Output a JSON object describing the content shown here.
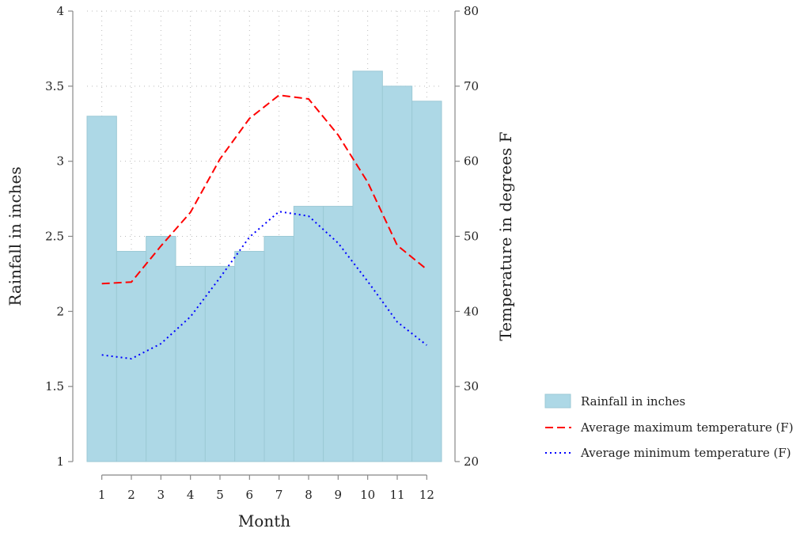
{
  "chart_data": {
    "type": "bar",
    "xlabel": "Month",
    "ylabel": "Rainfall in inches",
    "y2label": "Temperature in degrees F",
    "categories": [
      1,
      2,
      3,
      4,
      5,
      6,
      7,
      8,
      9,
      10,
      11,
      12
    ],
    "ylim": [
      1,
      4
    ],
    "y2lim": [
      20,
      80
    ],
    "yticks": [
      1,
      1.5,
      2,
      2.5,
      3,
      3.5,
      4
    ],
    "y2ticks": [
      20,
      30,
      40,
      50,
      60,
      70,
      80
    ],
    "grid": "dotted",
    "legend_position": "right",
    "series": [
      {
        "name": "Rainfall in inches",
        "type": "bar",
        "axis": "left",
        "color": "#add8e6",
        "values": [
          3.3,
          2.4,
          2.5,
          2.3,
          2.3,
          2.4,
          2.5,
          2.7,
          2.7,
          3.6,
          3.5,
          3.4
        ]
      },
      {
        "name": "Average maximum temperature (F)",
        "type": "line",
        "axis": "right",
        "style": "dashed",
        "color": "#ff0000",
        "values": [
          43.7,
          43.9,
          48.7,
          53.2,
          60.3,
          65.7,
          68.8,
          68.3,
          63.5,
          57.2,
          48.8,
          45.6
        ]
      },
      {
        "name": "Average minimum temperature (F)",
        "type": "line",
        "axis": "right",
        "style": "dotted",
        "color": "#0000ff",
        "values": [
          34.2,
          33.7,
          35.7,
          39.3,
          44.5,
          49.9,
          53.3,
          52.7,
          49.1,
          44.0,
          38.6,
          35.5
        ]
      }
    ]
  }
}
